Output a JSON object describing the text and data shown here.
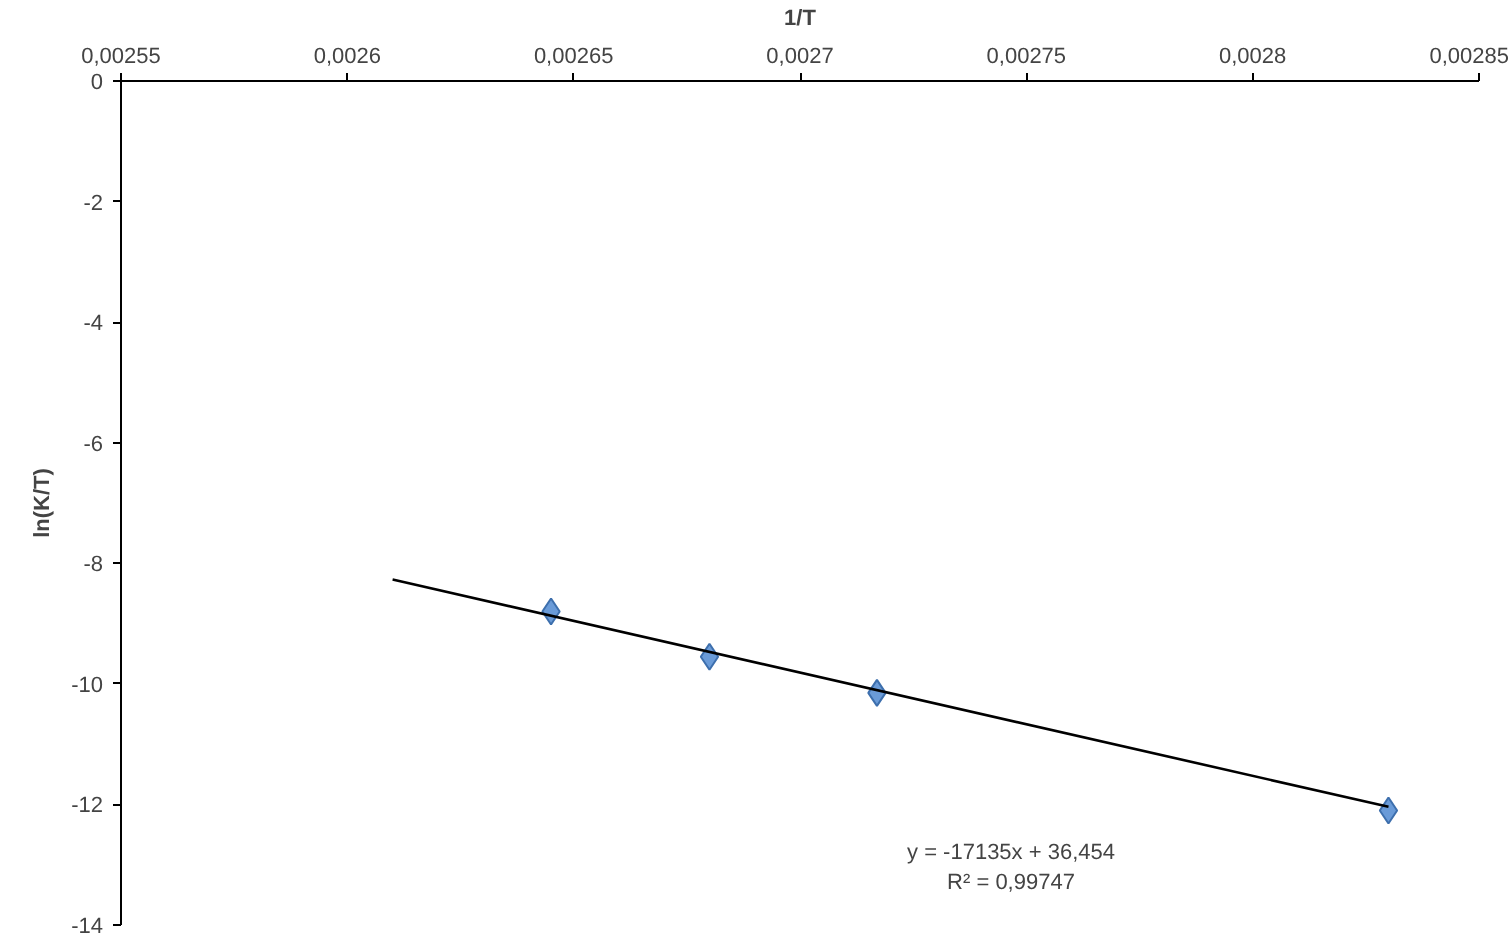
{
  "chart_data": {
    "type": "scatter",
    "xlabel": "1/T",
    "ylabel": "ln(K/T)",
    "xlim": [
      0.00255,
      0.00285
    ],
    "xticks": [
      {
        "value": 0.00255,
        "label": "0,00255"
      },
      {
        "value": 0.0026,
        "label": "0,0026"
      },
      {
        "value": 0.00265,
        "label": "0,00265"
      },
      {
        "value": 0.0027,
        "label": "0,0027"
      },
      {
        "value": 0.00275,
        "label": "0,00275"
      },
      {
        "value": 0.0028,
        "label": "0,0028"
      },
      {
        "value": 0.00285,
        "label": "0,00285"
      }
    ],
    "ylim": [
      -14,
      0
    ],
    "yticks": [
      -14,
      -12,
      -10,
      -8,
      -6,
      -4,
      -2,
      0
    ],
    "grid": false,
    "series": [
      {
        "color": "#6a9bd8",
        "marker": "diamond",
        "x": [
          0.002645,
          0.00268,
          0.002717,
          0.00283
        ],
        "values": [
          -8.8,
          -9.55,
          -10.15,
          -12.1
        ]
      },
      {
        "type": "line",
        "color": "#000000",
        "marker": "none",
        "line_style": "solid",
        "x": [
          0.00261,
          0.00283
        ],
        "values": [
          -8.27,
          -12.04
        ]
      }
    ],
    "annotations": [
      "y = -17135x + 36,454",
      "R² = 0,99747"
    ]
  }
}
